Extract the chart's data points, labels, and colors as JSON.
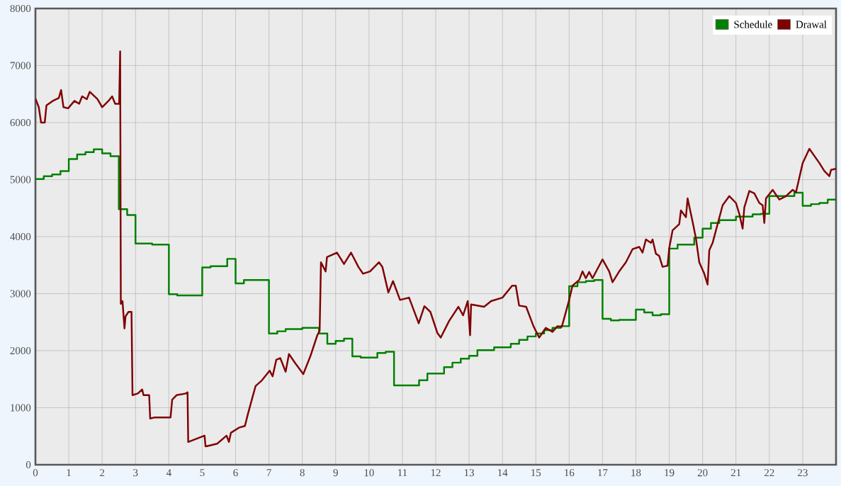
{
  "chart_data": {
    "type": "line",
    "xlim": [
      0,
      24
    ],
    "ylim": [
      0,
      8000
    ],
    "xticks": [
      0,
      1,
      2,
      3,
      4,
      5,
      6,
      7,
      8,
      9,
      10,
      11,
      12,
      13,
      14,
      15,
      16,
      17,
      18,
      19,
      20,
      21,
      22,
      23
    ],
    "yticks": [
      0,
      1000,
      2000,
      3000,
      4000,
      5000,
      6000,
      7000,
      8000
    ],
    "grid": true,
    "legend": "top right",
    "series": [
      {
        "name": "Schedule",
        "type": "step",
        "color": "#008000",
        "x": [
          0,
          0.25,
          0.5,
          0.75,
          1.0,
          1.25,
          1.5,
          1.75,
          2.0,
          2.25,
          2.5,
          2.75,
          3.0,
          3.5,
          4.0,
          4.25,
          5.0,
          5.25,
          5.75,
          6.0,
          6.25,
          7.0,
          7.25,
          7.5,
          8.0,
          8.5,
          8.75,
          9.0,
          9.25,
          9.5,
          9.75,
          10.25,
          10.5,
          10.75,
          11.5,
          11.75,
          12.25,
          12.5,
          12.75,
          13.0,
          13.25,
          13.75,
          14.25,
          14.5,
          14.75,
          15.0,
          15.25,
          15.5,
          15.75,
          16.0,
          16.25,
          16.5,
          16.75,
          17.0,
          17.25,
          17.5,
          18.0,
          18.25,
          18.5,
          18.75,
          19.0,
          19.25,
          19.75,
          20.0,
          20.25,
          20.5,
          21.0,
          21.5,
          21.75,
          22.0,
          22.75,
          23.0,
          23.25,
          23.5,
          23.75,
          24
        ],
        "values": [
          5010,
          5060,
          5090,
          5150,
          5360,
          5440,
          5480,
          5530,
          5460,
          5410,
          4480,
          4380,
          3880,
          3860,
          2990,
          2970,
          3460,
          3480,
          3610,
          3180,
          3240,
          2300,
          2340,
          2380,
          2400,
          2300,
          2120,
          2170,
          2210,
          1900,
          1880,
          1960,
          1980,
          1390,
          1480,
          1600,
          1710,
          1790,
          1860,
          1910,
          2010,
          2060,
          2120,
          2190,
          2250,
          2300,
          2360,
          2400,
          2430,
          3130,
          3200,
          3220,
          3240,
          2560,
          2530,
          2540,
          2720,
          2670,
          2620,
          2640,
          3790,
          3860,
          3980,
          4140,
          4240,
          4290,
          4350,
          4390,
          4400,
          4710,
          4770,
          4540,
          4570,
          4590,
          4650,
          4650
        ]
      },
      {
        "name": "Drawal",
        "color": "#800000",
        "x": [
          0,
          0.1,
          0.17,
          0.28,
          0.33,
          0.52,
          0.7,
          0.77,
          0.84,
          0.98,
          1.17,
          1.31,
          1.4,
          1.54,
          1.63,
          1.86,
          2.0,
          2.19,
          2.3,
          2.39,
          2.51,
          2.54,
          2.56,
          2.61,
          2.67,
          2.7,
          2.79,
          2.88,
          2.91,
          3.07,
          3.2,
          3.24,
          3.41,
          3.44,
          3.58,
          4.05,
          4.1,
          4.23,
          4.51,
          4.56,
          4.58,
          5.07,
          5.1,
          5.45,
          5.73,
          5.8,
          5.86,
          6.1,
          6.28,
          6.37,
          6.51,
          6.6,
          6.79,
          7.02,
          7.11,
          7.22,
          7.34,
          7.5,
          7.6,
          7.79,
          8.03,
          8.24,
          8.45,
          8.52,
          8.56,
          8.7,
          8.74,
          9.04,
          9.25,
          9.46,
          9.68,
          9.82,
          10.03,
          10.3,
          10.4,
          10.58,
          10.72,
          10.93,
          11.2,
          11.49,
          11.66,
          11.84,
          12.05,
          12.15,
          12.4,
          12.68,
          12.82,
          12.96,
          13.03,
          13.06,
          13.45,
          13.66,
          14.0,
          14.29,
          14.4,
          14.5,
          14.71,
          14.93,
          15.1,
          15.3,
          15.5,
          15.65,
          15.78,
          16.0,
          16.1,
          16.3,
          16.4,
          16.5,
          16.6,
          16.7,
          16.9,
          17.0,
          17.2,
          17.3,
          17.5,
          17.7,
          17.9,
          18.1,
          18.2,
          18.3,
          18.45,
          18.5,
          18.6,
          18.7,
          18.8,
          18.95,
          19.0,
          19.1,
          19.3,
          19.35,
          19.5,
          19.55,
          19.7,
          19.8,
          19.9,
          20.05,
          20.15,
          20.2,
          20.3,
          20.6,
          20.8,
          21.0,
          21.1,
          21.2,
          21.25,
          21.4,
          21.55,
          21.7,
          21.8,
          21.85,
          21.9,
          22.1,
          22.3,
          22.5,
          22.7,
          22.8,
          23.0,
          23.2,
          23.5,
          23.65,
          23.8,
          23.85,
          24.0
        ],
        "values": [
          6420,
          6270,
          6000,
          6000,
          6300,
          6380,
          6430,
          6570,
          6270,
          6250,
          6380,
          6330,
          6460,
          6410,
          6540,
          6410,
          6270,
          6380,
          6460,
          6330,
          6330,
          7250,
          2820,
          2870,
          2390,
          2600,
          2680,
          2680,
          1220,
          1250,
          1320,
          1220,
          1220,
          810,
          830,
          830,
          1140,
          1220,
          1250,
          1270,
          400,
          510,
          320,
          370,
          510,
          400,
          560,
          650,
          680,
          890,
          1190,
          1380,
          1480,
          1650,
          1550,
          1840,
          1870,
          1630,
          1940,
          1780,
          1590,
          1900,
          2270,
          2350,
          3550,
          3390,
          3640,
          3720,
          3520,
          3720,
          3470,
          3350,
          3390,
          3550,
          3470,
          3020,
          3220,
          2890,
          2930,
          2480,
          2780,
          2680,
          2310,
          2230,
          2520,
          2770,
          2620,
          2870,
          2270,
          2810,
          2770,
          2870,
          2930,
          3140,
          3140,
          2790,
          2770,
          2430,
          2230,
          2400,
          2330,
          2430,
          2420,
          2890,
          3140,
          3240,
          3390,
          3270,
          3380,
          3270,
          3490,
          3600,
          3390,
          3200,
          3390,
          3550,
          3780,
          3820,
          3720,
          3950,
          3890,
          3950,
          3700,
          3660,
          3470,
          3490,
          3800,
          4110,
          4220,
          4460,
          4340,
          4670,
          4260,
          3970,
          3550,
          3350,
          3160,
          3760,
          3890,
          4550,
          4710,
          4590,
          4400,
          4140,
          4510,
          4800,
          4760,
          4590,
          4550,
          4240,
          4670,
          4820,
          4650,
          4710,
          4820,
          4780,
          5290,
          5540,
          5290,
          5150,
          5060,
          5170,
          5190
        ]
      }
    ]
  }
}
